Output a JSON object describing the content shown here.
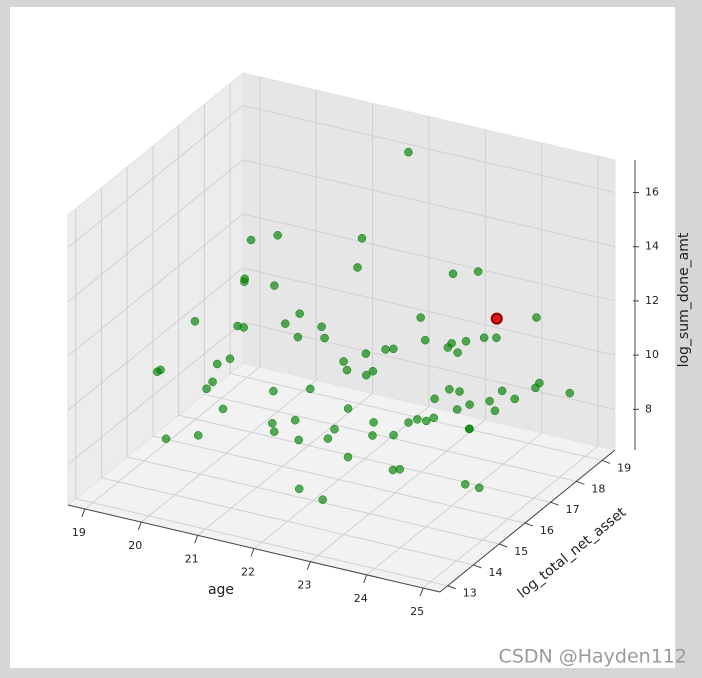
{
  "chart_data": {
    "type": "scatter3d",
    "xlabel": "age",
    "ylabel": "log_total_net_asset",
    "zlabel": "log_sum_done_amt",
    "xlim": [
      18.7,
      25.3
    ],
    "xticks": [
      19,
      20,
      21,
      22,
      23,
      24,
      25
    ],
    "ylim": [
      12.7,
      19.5
    ],
    "yticks": [
      13,
      14,
      15,
      16,
      17,
      18,
      19
    ],
    "zlim": [
      6.5,
      17.2
    ],
    "zticks": [
      8,
      10,
      12,
      14,
      16
    ],
    "grid": true,
    "series": [
      {
        "color": "#008000",
        "x": [
          19.2,
          19.5,
          19.8,
          20.1,
          20.3,
          20.6,
          20.9,
          21.1,
          21.4,
          21.7,
          19.3,
          19.9,
          20.4,
          20.8,
          21.2,
          21.6,
          22.0,
          22.3,
          22.6,
          22.9,
          22.1,
          22.4,
          22.8,
          23.1,
          23.3,
          23.6,
          23.9,
          24.2,
          24.5,
          24.8,
          23.0,
          23.2,
          23.5,
          23.7,
          24.0,
          24.3,
          24.6,
          24.9,
          25.1,
          22.5,
          21.9,
          22.2,
          22.7,
          23.4,
          23.8,
          24.1,
          24.4,
          24.7,
          25.0,
          21.5,
          19.6,
          20.0,
          20.7,
          21.3,
          21.8,
          22.6,
          23.3,
          23.9,
          24.5,
          25.2,
          19.4,
          20.2,
          20.5,
          21.0,
          22.0,
          22.9,
          23.5,
          24.2,
          24.8,
          23.1,
          22.3,
          23.6,
          24.0,
          24.6,
          22.8,
          23.8,
          24.3,
          21.4,
          20.9,
          19.7
        ],
        "y": [
          15.2,
          17.8,
          14.1,
          16.5,
          18.2,
          13.6,
          15.9,
          17.3,
          14.8,
          16.1,
          18.5,
          16.9,
          15.0,
          13.9,
          18.8,
          17.6,
          14.3,
          15.7,
          16.8,
          13.4,
          17.1,
          18.3,
          14.6,
          15.4,
          16.2,
          13.8,
          17.9,
          14.9,
          15.6,
          16.7,
          18.1,
          13.2,
          17.4,
          14.4,
          16.0,
          18.6,
          13.7,
          15.1,
          17.0,
          15.8,
          16.4,
          14.0,
          18.9,
          15.3,
          17.7,
          13.5,
          16.6,
          14.7,
          18.4,
          15.5,
          14.2,
          18.0,
          16.3,
          13.3,
          17.5,
          15.0,
          14.5,
          16.9,
          18.2,
          13.9,
          16.1,
          14.8,
          17.2,
          15.6,
          18.7,
          13.6,
          16.4,
          17.3,
          14.1,
          19.0,
          13.8,
          15.2,
          16.7,
          14.9,
          17.6,
          18.4,
          15.9,
          16.2,
          13.5,
          17.1
        ],
        "z": [
          9.8,
          11.2,
          8.4,
          12.6,
          10.1,
          9.3,
          13.2,
          10.7,
          8.9,
          11.5,
          12.1,
          10.4,
          9.1,
          11.8,
          8.6,
          12.9,
          10.0,
          9.5,
          11.0,
          8.2,
          9.7,
          10.9,
          8.8,
          12.3,
          9.2,
          10.6,
          8.5,
          11.4,
          9.9,
          10.3,
          8.7,
          11.1,
          9.4,
          10.2,
          12.5,
          9.0,
          11.7,
          8.3,
          10.8,
          15.8,
          10.5,
          9.6,
          12.2,
          8.1,
          11.3,
          9.8,
          10.1,
          13.5,
          9.3,
          11.9,
          10.7,
          13.0,
          8.9,
          12.7,
          9.1,
          11.6,
          10.4,
          8.6,
          12.0,
          9.5,
          11.0,
          9.9,
          10.6,
          8.4,
          16.5,
          10.3,
          9.2,
          11.8,
          14.2,
          12.4,
          8.0,
          10.0,
          9.7,
          11.2,
          10.8,
          8.8,
          12.8,
          9.4,
          11.5,
          10.2
        ]
      },
      {
        "color": "#e00000",
        "x": [
          24.8
        ],
        "y": [
          16.0
        ],
        "z": [
          13.8
        ]
      }
    ],
    "watermark": "CSDN @Hayden112"
  }
}
